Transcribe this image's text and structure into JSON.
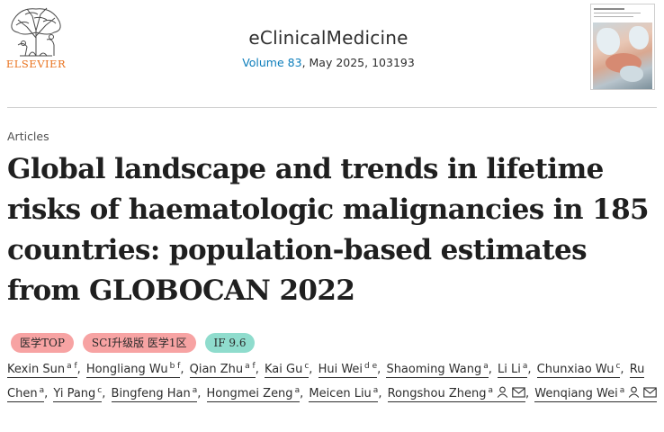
{
  "publisher": {
    "logo_text": "ELSEVIER"
  },
  "journal": {
    "name": "eClinicalMedicine",
    "volume_label": "Volume 83",
    "issue_rest": ", May 2025, 103193"
  },
  "colors": {
    "publisher_orange": "#e9711c",
    "link_blue": "#0c7dbb",
    "badge_red": "#f7a3a3",
    "badge_teal": "#8fdccd"
  },
  "article": {
    "type": "Articles",
    "title": "Global landscape and trends in lifetime risks of haematologic malignancies in 185 countries: population-based estimates from GLOBOCAN 2022"
  },
  "badges": [
    {
      "label": "医学TOP",
      "color": "red"
    },
    {
      "label": "SCI升级版 医学1区",
      "color": "red"
    },
    {
      "label": "IF 9.6",
      "color": "teal"
    }
  ],
  "authors": [
    {
      "name": "Kexin Sun",
      "aff": "a f",
      "icons": []
    },
    {
      "name": "Hongliang Wu",
      "aff": "b f",
      "icons": []
    },
    {
      "name": "Qian Zhu",
      "aff": "a f",
      "icons": []
    },
    {
      "name": "Kai Gu",
      "aff": "c",
      "icons": []
    },
    {
      "name": "Hui Wei",
      "aff": "d e",
      "icons": []
    },
    {
      "name": "Shaoming Wang",
      "aff": "a",
      "icons": []
    },
    {
      "name": "Li Li",
      "aff": "a",
      "icons": []
    },
    {
      "name": "Chunxiao Wu",
      "aff": "c",
      "icons": []
    },
    {
      "name": "Ru Chen",
      "aff": "a",
      "icons": []
    },
    {
      "name": "Yi Pang",
      "aff": "c",
      "icons": []
    },
    {
      "name": "Bingfeng Han",
      "aff": "a",
      "icons": []
    },
    {
      "name": "Hongmei Zeng",
      "aff": "a",
      "icons": []
    },
    {
      "name": "Meicen Liu",
      "aff": "a",
      "icons": []
    },
    {
      "name": "Rongshou Zheng",
      "aff": "a",
      "icons": [
        "person-icon",
        "envelope-icon"
      ]
    },
    {
      "name": "Wenqiang Wei",
      "aff": "a",
      "icons": [
        "person-icon",
        "envelope-icon"
      ]
    }
  ]
}
